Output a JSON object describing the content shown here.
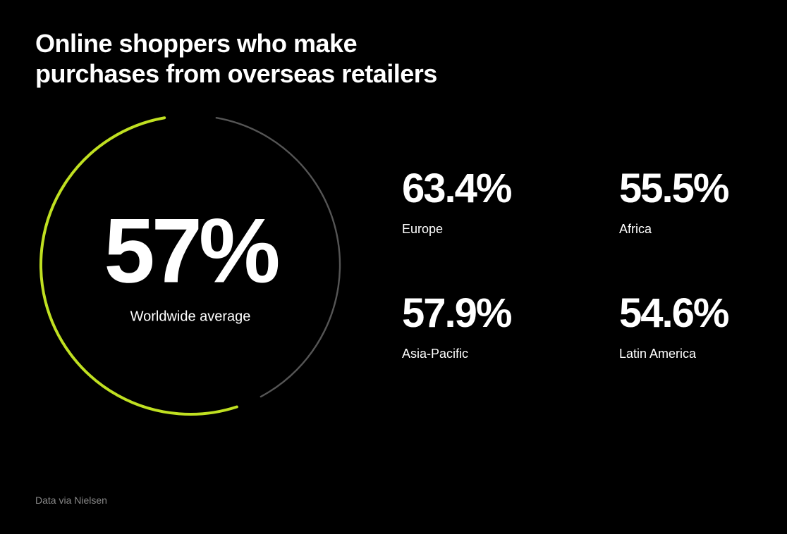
{
  "title_line1": "Online shoppers who make",
  "title_line2": "purchases from overseas retailers",
  "title_fontsize": 36,
  "background_color": "#000000",
  "text_color": "#ffffff",
  "donut": {
    "value": "57%",
    "value_fontsize": 130,
    "label": "Worldwide average",
    "label_fontsize": 20,
    "percentage": 57,
    "size": 440,
    "stroke_width": 4,
    "progress_color": "#c0e021",
    "track_color": "#555555",
    "gap_degrees": 15,
    "start_offset_degrees": 10
  },
  "stats": [
    {
      "value": "63.4%",
      "label": "Europe"
    },
    {
      "value": "55.5%",
      "label": "Africa"
    },
    {
      "value": "57.9%",
      "label": "Asia-Pacific"
    },
    {
      "value": "54.6%",
      "label": "Latin America"
    }
  ],
  "stat_value_fontsize": 58,
  "stat_label_fontsize": 18,
  "attribution": "Data via Nielsen",
  "attribution_fontsize": 14,
  "attribution_color": "#888888"
}
